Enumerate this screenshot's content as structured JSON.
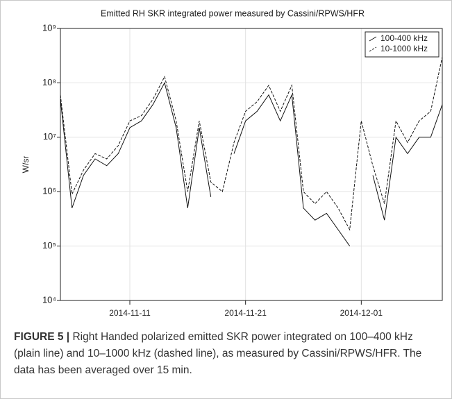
{
  "chart_data": {
    "type": "line",
    "title": "Emitted RH SKR integrated power measured by Cassini/RPWS/HFR",
    "y_label": "W/sr",
    "x": [
      "2014-11-05",
      "2014-11-06",
      "2014-11-07",
      "2014-11-08",
      "2014-11-09",
      "2014-11-10",
      "2014-11-11",
      "2014-11-12",
      "2014-11-13",
      "2014-11-14",
      "2014-11-15",
      "2014-11-16",
      "2014-11-17",
      "2014-11-18",
      "2014-11-19",
      "2014-11-20",
      "2014-11-21",
      "2014-11-22",
      "2014-11-23",
      "2014-11-24",
      "2014-11-25",
      "2014-11-26",
      "2014-11-27",
      "2014-11-28",
      "2014-11-29",
      "2014-11-30",
      "2014-12-01",
      "2014-12-02",
      "2014-12-03",
      "2014-12-04",
      "2014-12-05",
      "2014-12-06",
      "2014-12-07",
      "2014-12-08"
    ],
    "series": [
      {
        "name": "100-400 kHz",
        "color": "#111111",
        "line_style": "solid",
        "values": [
          50000000,
          500000,
          2000000,
          4000000,
          3000000,
          5000000,
          15000000,
          20000000,
          40000000,
          100000000,
          15000000,
          500000,
          15000000,
          800000,
          null,
          5000000,
          20000000,
          30000000,
          60000000,
          20000000,
          60000000,
          500000,
          300000,
          400000,
          200000,
          100000,
          null,
          2000000,
          300000,
          10000000,
          5000000,
          10000000,
          10000000,
          40000000
        ]
      },
      {
        "name": "10-1000 kHz",
        "color": "#111111",
        "line_style": "dashed",
        "values": [
          60000000,
          900000,
          2500000,
          5000000,
          4000000,
          7000000,
          20000000,
          25000000,
          50000000,
          130000000,
          20000000,
          1000000,
          20000000,
          1500000,
          1000000,
          8000000,
          30000000,
          45000000,
          90000000,
          30000000,
          90000000,
          1000000,
          600000,
          1000000,
          500000,
          200000,
          20000000,
          3000000,
          600000,
          20000000,
          8000000,
          20000000,
          30000000,
          300000000
        ]
      }
    ],
    "xlim": [
      "2014-11-05",
      "2014-12-08"
    ],
    "xticks": [
      "2014-11-11",
      "2014-11-21",
      "2014-12-01"
    ],
    "ylim": [
      10000,
      1000000000
    ],
    "yticks": [
      {
        "value": 10000,
        "label": "10⁴"
      },
      {
        "value": 100000,
        "label": "10⁵"
      },
      {
        "value": 1000000,
        "label": "10⁶"
      },
      {
        "value": 10000000,
        "label": "10⁷"
      },
      {
        "value": 100000000,
        "label": "10⁸"
      },
      {
        "value": 1000000000,
        "label": "10⁹"
      }
    ],
    "log_y": true,
    "grid": true,
    "legend": "upper right"
  },
  "caption": {
    "label": "FIGURE 5 |",
    "text": "Right Handed polarized emitted SKR power integrated on 100–400 kHz (plain line) and 10–1000 kHz (dashed line), as measured by Cassini/RPWS/HFR. The data has been averaged over 15 min."
  }
}
